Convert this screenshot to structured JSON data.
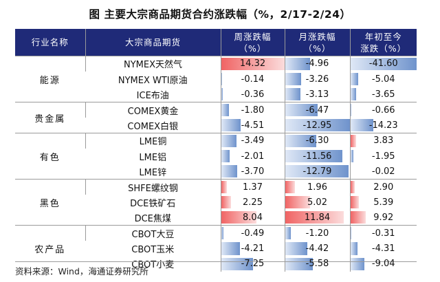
{
  "title": {
    "label": "图",
    "text": "主要大宗商品期货合约涨跌幅（%，2/17-2/24）"
  },
  "headers": {
    "industry": "行业名称",
    "commodity": "大宗商品期货",
    "week_line1": "周涨跌幅",
    "week_line2": "（%）",
    "month_line1": "月涨跌幅",
    "month_line2": "（%）",
    "ytd_line1": "年初至今",
    "ytd_line2": "涨跌（%）"
  },
  "scales": {
    "week_max_abs": 14.32,
    "month_max_abs": 12.95,
    "ytd_max_abs": 41.6
  },
  "colors": {
    "header_bg": "#1f2a78",
    "negative_bar": "#6f93cc",
    "positive_bar": "#f06464"
  },
  "groups": [
    {
      "category": "能源",
      "rows": [
        {
          "name": "NYMEX天然气",
          "week": "14.32",
          "month": "-4.96",
          "ytd": "-41.60"
        },
        {
          "name": "NYMEX WTI原油",
          "week": "-0.14",
          "month": "-3.26",
          "ytd": "-5.04"
        },
        {
          "name": "ICE布油",
          "week": "-0.36",
          "month": "-3.13",
          "ytd": "-3.65"
        }
      ]
    },
    {
      "category": "贵金属",
      "rows": [
        {
          "name": "COMEX黄金",
          "week": "-1.80",
          "month": "-6.47",
          "ytd": "-0.66"
        },
        {
          "name": "COMEX白银",
          "week": "-4.51",
          "month": "-12.95",
          "ytd": "-14.23"
        }
      ]
    },
    {
      "category": "有色",
      "rows": [
        {
          "name": "LME铜",
          "week": "-3.49",
          "month": "-6.30",
          "ytd": "3.83"
        },
        {
          "name": "LME铝",
          "week": "-2.01",
          "month": "-11.56",
          "ytd": "-1.95"
        },
        {
          "name": "LME锌",
          "week": "-3.70",
          "month": "-12.79",
          "ytd": "-0.02"
        }
      ]
    },
    {
      "category": "黑色",
      "rows": [
        {
          "name": "SHFE螺纹钢",
          "week": "1.37",
          "month": "1.96",
          "ytd": "2.90"
        },
        {
          "name": "DCE铁矿石",
          "week": "2.25",
          "month": "5.02",
          "ytd": "5.39"
        },
        {
          "name": "DCE焦煤",
          "week": "8.04",
          "month": "11.84",
          "ytd": "9.92"
        }
      ]
    },
    {
      "category": "农产品",
      "rows": [
        {
          "name": "CBOT大豆",
          "week": "-0.49",
          "month": "-1.20",
          "ytd": "-0.31"
        },
        {
          "name": "CBOT玉米",
          "week": "-4.21",
          "month": "-4.42",
          "ytd": "-4.31"
        },
        {
          "name": "CBOT小麦",
          "week": "-7.25",
          "month": "-5.58",
          "ytd": "-9.04"
        }
      ]
    }
  ],
  "source": "资料来源：Wind，海通证券研究所"
}
